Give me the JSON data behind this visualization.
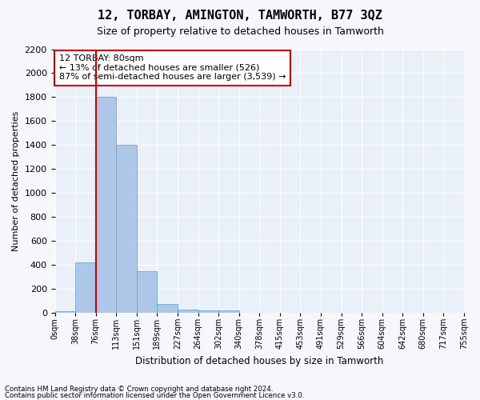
{
  "title": "12, TORBAY, AMINGTON, TAMWORTH, B77 3QZ",
  "subtitle": "Size of property relative to detached houses in Tamworth",
  "xlabel": "Distribution of detached houses by size in Tamworth",
  "ylabel": "Number of detached properties",
  "bar_color": "#aec6e8",
  "bar_edge_color": "#5a9fd4",
  "background_color": "#eaf0f8",
  "grid_color": "#ffffff",
  "bin_labels": [
    "0sqm",
    "38sqm",
    "76sqm",
    "113sqm",
    "151sqm",
    "189sqm",
    "227sqm",
    "264sqm",
    "302sqm",
    "340sqm",
    "378sqm",
    "415sqm",
    "453sqm",
    "491sqm",
    "529sqm",
    "566sqm",
    "604sqm",
    "642sqm",
    "680sqm",
    "717sqm",
    "755sqm"
  ],
  "bar_values": [
    15,
    420,
    1800,
    1400,
    350,
    75,
    30,
    20,
    20,
    0,
    0,
    0,
    0,
    0,
    0,
    0,
    0,
    0,
    0,
    0
  ],
  "ylim": [
    0,
    2200
  ],
  "yticks": [
    0,
    200,
    400,
    600,
    800,
    1000,
    1200,
    1400,
    1600,
    1800,
    2000,
    2200
  ],
  "vline_x": 2.0,
  "annotation_text": "12 TORBAY: 80sqm\n← 13% of detached houses are smaller (526)\n87% of semi-detached houses are larger (3,539) →",
  "annotation_box_color": "#ffffff",
  "annotation_box_edgecolor": "#cc0000",
  "footer_line1": "Contains HM Land Registry data © Crown copyright and database right 2024.",
  "footer_line2": "Contains public sector information licensed under the Open Government Licence v3.0."
}
